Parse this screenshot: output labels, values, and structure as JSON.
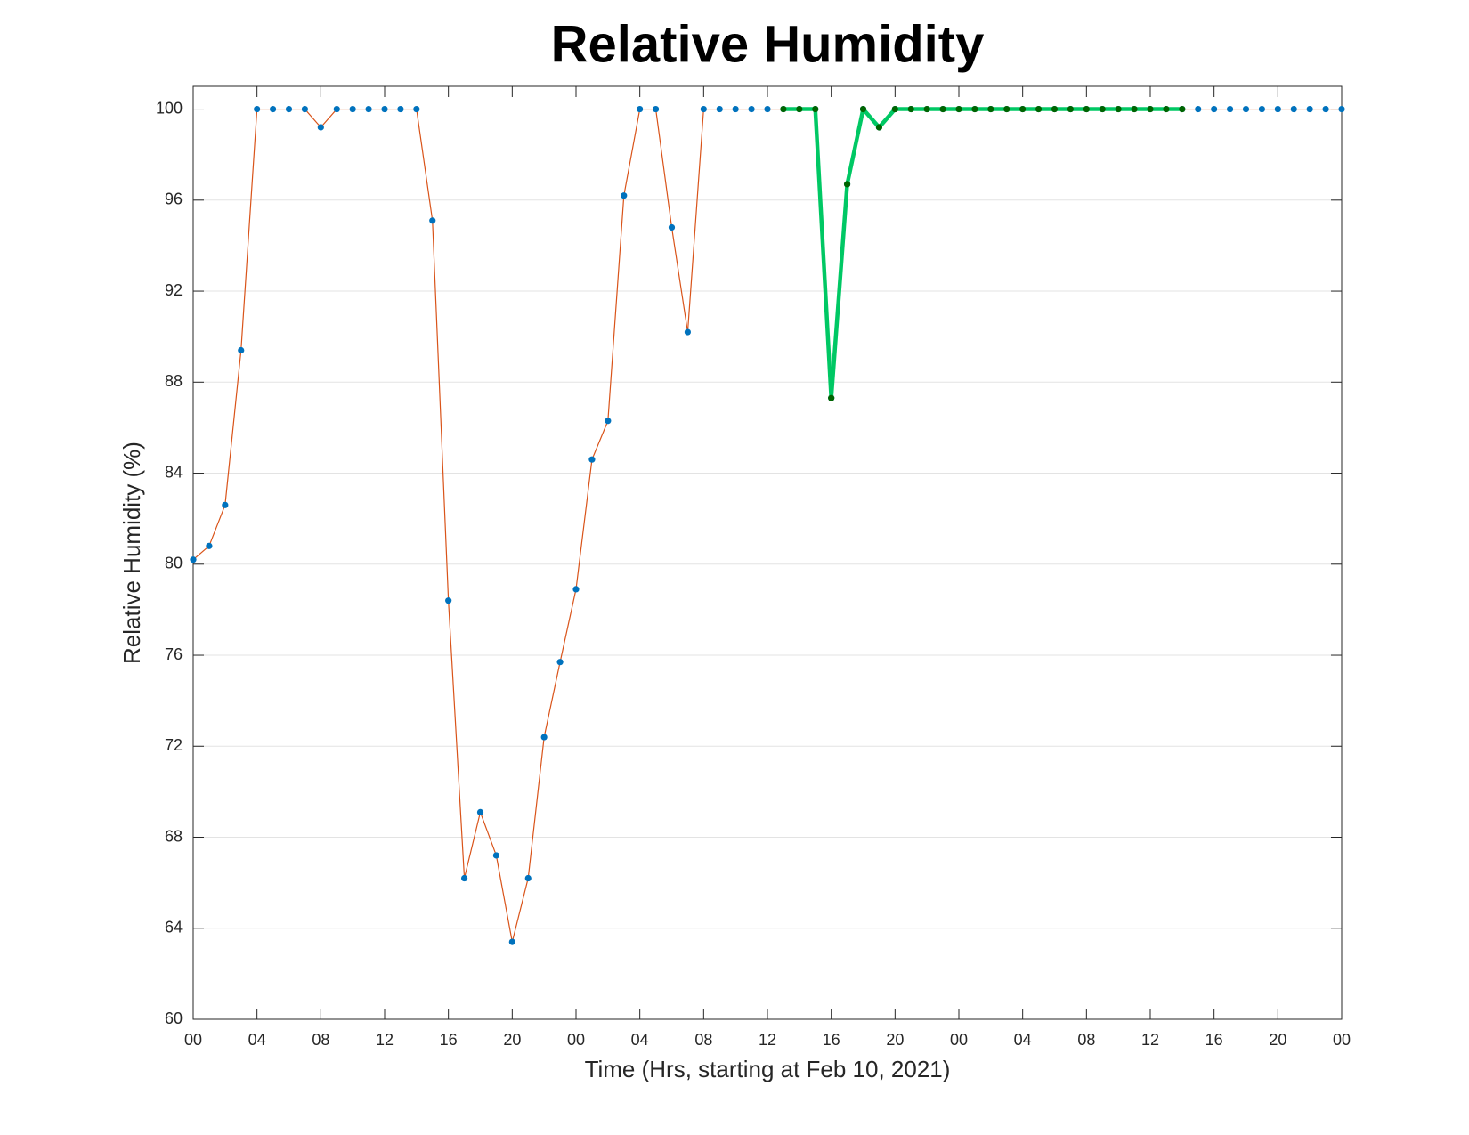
{
  "chart_data": {
    "type": "line",
    "title": "Relative Humidity",
    "xlabel": "Time (Hrs, starting at Feb 10, 2021)",
    "ylabel": "Relative Humidity (%)",
    "xlim": [
      0,
      72
    ],
    "ylim": [
      60,
      101
    ],
    "xticks": [
      {
        "value": 0,
        "label": "00"
      },
      {
        "value": 4,
        "label": "04"
      },
      {
        "value": 8,
        "label": "08"
      },
      12,
      16,
      20,
      {
        "value": 24,
        "label": "00"
      },
      {
        "value": 28,
        "label": "04"
      },
      {
        "value": 32,
        "label": "08"
      },
      {
        "value": 36,
        "label": "12"
      },
      {
        "value": 40,
        "label": "16"
      },
      {
        "value": 44,
        "label": "20"
      },
      {
        "value": 48,
        "label": "00"
      },
      {
        "value": 52,
        "label": "04"
      },
      {
        "value": 56,
        "label": "08"
      },
      {
        "value": 60,
        "label": "12"
      },
      {
        "value": 64,
        "label": "16"
      },
      {
        "value": 68,
        "label": "20"
      },
      {
        "value": 72,
        "label": "00"
      }
    ],
    "yticks": [
      60,
      64,
      68,
      72,
      76,
      80,
      84,
      88,
      92,
      96,
      100
    ],
    "grid": true,
    "series": [
      {
        "color": "#d95319",
        "marker_color": "#0072bd",
        "line_width": 1.2,
        "x": [
          0,
          1,
          2,
          3,
          4,
          5,
          6,
          7,
          8,
          9,
          10,
          11,
          12,
          13,
          14,
          15,
          16,
          17,
          18,
          19,
          20,
          21,
          22,
          23,
          24,
          25,
          26,
          27,
          28,
          29,
          30,
          31,
          32,
          33,
          34,
          35,
          36,
          37,
          38,
          39,
          40,
          41,
          42,
          43,
          44,
          45,
          46,
          47,
          48,
          49,
          50,
          51,
          52,
          53,
          54,
          55,
          56,
          57,
          58,
          59,
          60,
          61,
          62,
          63,
          64,
          65,
          66,
          67,
          68,
          69,
          70,
          71,
          72
        ],
        "values": [
          80.2,
          80.8,
          82.6,
          89.4,
          100,
          100,
          100,
          100,
          99.2,
          100,
          100,
          100,
          100,
          100,
          100,
          95.1,
          78.4,
          66.2,
          69.1,
          67.2,
          63.4,
          66.2,
          72.4,
          75.7,
          78.9,
          84.6,
          86.3,
          96.2,
          100,
          100,
          94.8,
          90.2,
          100,
          100,
          100,
          100,
          100,
          100,
          100,
          100,
          87.3,
          96.7,
          100,
          99.2,
          100,
          100,
          100,
          100,
          100,
          100,
          100,
          100,
          100,
          100,
          100,
          100,
          100,
          100,
          100,
          100,
          100,
          100,
          100,
          100,
          100,
          100,
          100,
          100,
          100,
          100,
          100,
          100,
          100
        ]
      },
      {
        "color": "#00c864",
        "marker_color": "#006400",
        "line_width": 4.5,
        "x": [
          37,
          38,
          39,
          40,
          41,
          42,
          43,
          44,
          45,
          46,
          47,
          48,
          49,
          50,
          51,
          52,
          53,
          54,
          55,
          56,
          57,
          58,
          59,
          60,
          61,
          62
        ],
        "values": [
          100,
          100,
          100,
          87.3,
          96.7,
          100,
          99.2,
          100,
          100,
          100,
          100,
          100,
          100,
          100,
          100,
          100,
          100,
          100,
          100,
          100,
          100,
          100,
          100,
          100,
          100,
          100
        ]
      }
    ]
  }
}
